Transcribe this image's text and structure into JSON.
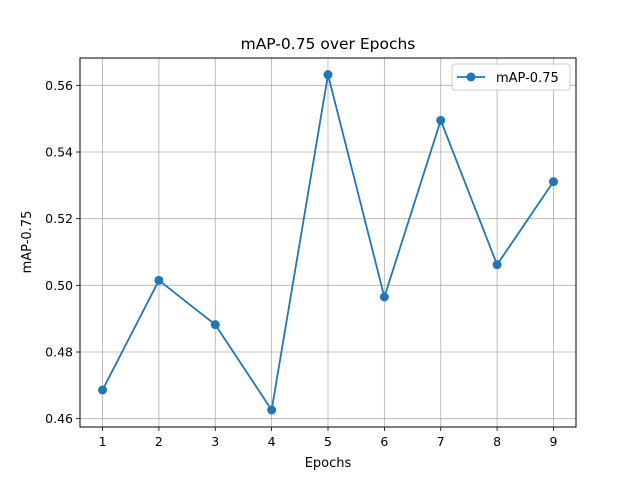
{
  "chart_data": {
    "type": "line",
    "title": "mAP-0.75 over Epochs",
    "xlabel": "Epochs",
    "ylabel": "mAP-0.75",
    "x": [
      1,
      2,
      3,
      4,
      5,
      6,
      7,
      8,
      9
    ],
    "series": [
      {
        "name": "mAP-0.75",
        "values": [
          0.4686,
          0.5015,
          0.4882,
          0.4626,
          0.5632,
          0.4965,
          0.5495,
          0.5062,
          0.5311
        ],
        "color": "#1f77b4"
      }
    ],
    "xticks": [
      "1",
      "2",
      "3",
      "4",
      "5",
      "6",
      "7",
      "8",
      "9"
    ],
    "yticks": [
      "0.46",
      "0.48",
      "0.50",
      "0.52",
      "0.54",
      "0.56"
    ],
    "xlim": [
      0.6,
      9.4
    ],
    "ylim": [
      0.4575,
      0.5682
    ],
    "grid": true,
    "legend_position": "top-right",
    "marker": "circle"
  }
}
